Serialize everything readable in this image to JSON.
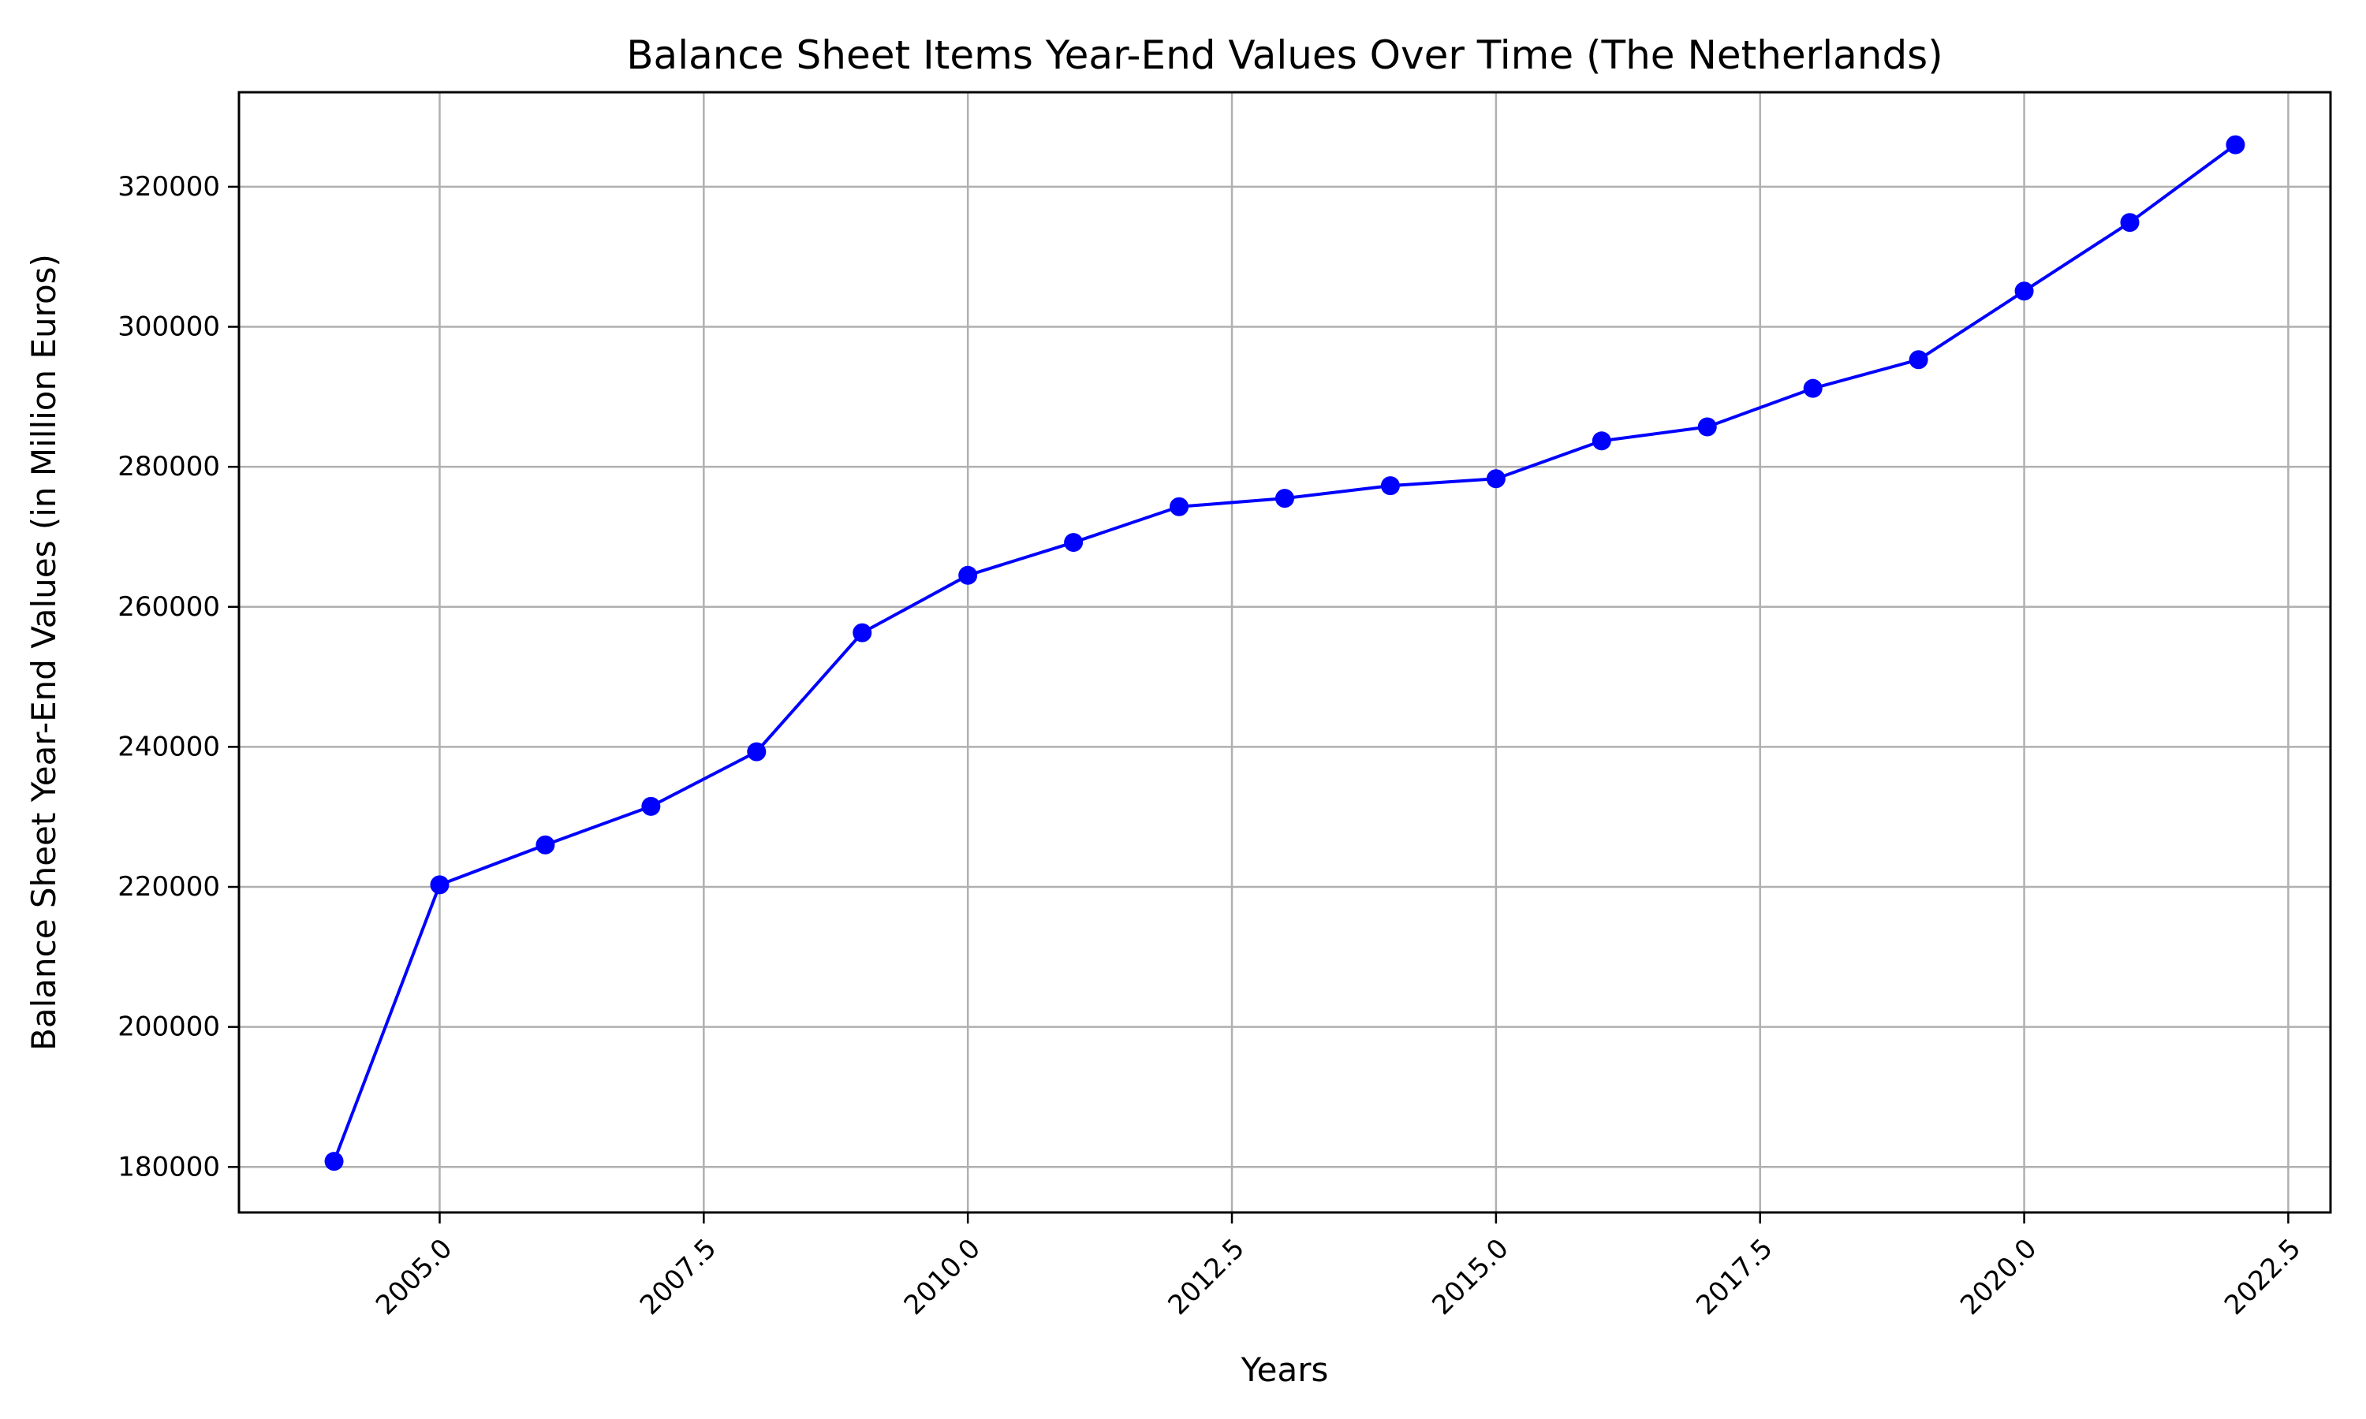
{
  "chart_data": {
    "type": "line",
    "title": "Balance Sheet Items Year-End Values Over Time (The Netherlands)",
    "xlabel": "Years",
    "ylabel": "Balance Sheet Year-End Values (in Million Euros)",
    "xlim": [
      2003.1,
      2022.9
    ],
    "ylim": [
      173500,
      333500
    ],
    "x_ticks": [
      2005.0,
      2007.5,
      2010.0,
      2012.5,
      2015.0,
      2017.5,
      2020.0,
      2022.5
    ],
    "x_tick_labels": [
      "2005.0",
      "2007.5",
      "2010.0",
      "2012.5",
      "2015.0",
      "2017.5",
      "2020.0",
      "2022.5"
    ],
    "y_ticks": [
      180000,
      200000,
      220000,
      240000,
      260000,
      280000,
      300000,
      320000
    ],
    "y_tick_labels": [
      "180000",
      "200000",
      "220000",
      "240000",
      "260000",
      "280000",
      "300000",
      "320000"
    ],
    "grid": true,
    "series": [
      {
        "color": "#0000ff",
        "marker": "circle",
        "x": [
          2004,
          2005,
          2006,
          2007,
          2008,
          2009,
          2010,
          2011,
          2012,
          2013,
          2014,
          2015,
          2016,
          2017,
          2018,
          2019,
          2020,
          2021,
          2022
        ],
        "values": [
          180800,
          220300,
          226000,
          231500,
          239300,
          256300,
          264500,
          269200,
          274300,
          275500,
          277300,
          278300,
          283700,
          285700,
          291200,
          295300,
          305100,
          314900,
          326000
        ]
      }
    ]
  }
}
